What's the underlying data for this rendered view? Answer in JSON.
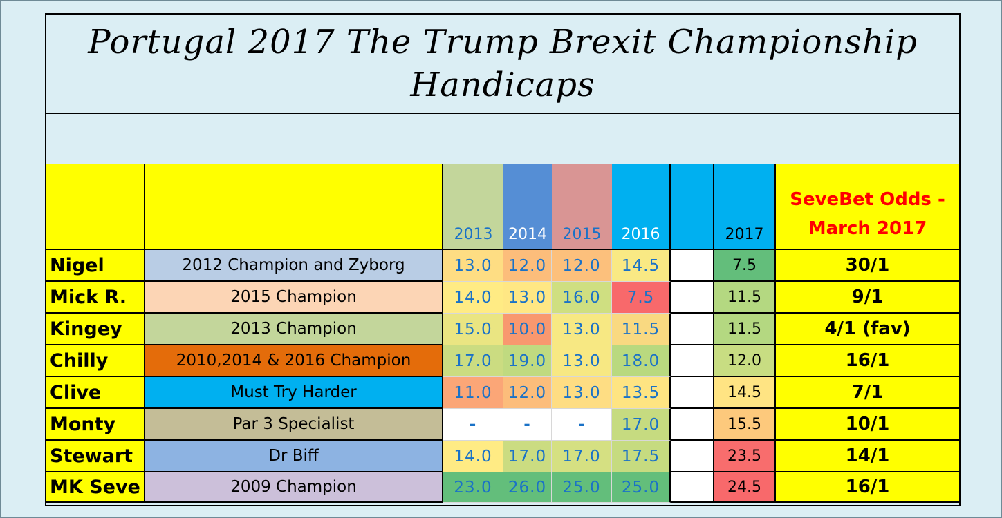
{
  "title_line1": "Portugal 2017 The Trump Brexit Championship",
  "title_line2": "Handicaps",
  "headers": {
    "years": [
      "2013",
      "2014",
      "2015",
      "2016"
    ],
    "current_year": "2017",
    "odds_line1": "SeveBet Odds -",
    "odds_line2": "March 2017"
  },
  "header_colors": {
    "label_bg": "#ffff00",
    "y2013": "#c3d69b",
    "y2014": "#558ed5",
    "y2015": "#d99594",
    "y2016": "#00b0f0",
    "blank": "#00b0f0",
    "y2017": "#00b0f0",
    "odds_text": "#ff0000"
  },
  "rows": [
    {
      "name": "Nigel",
      "note": "2012 Champion and Zyborg",
      "note_bg": "#b9cde5",
      "h": [
        "13.0",
        "12.0",
        "12.0",
        "14.5"
      ],
      "h_bg": [
        "#fedd83",
        "#fcbd7b",
        "#fcc07c",
        "#f9e984"
      ],
      "cur": "7.5",
      "cur_bg": "#63be7b",
      "odds": "30/1"
    },
    {
      "name": "Mick R.",
      "note": "2015 Champion",
      "note_bg": "#fcd5b5",
      "h": [
        "14.0",
        "13.0",
        "16.0",
        "7.5"
      ],
      "h_bg": [
        "#ffeb84",
        "#ffe784",
        "#cfdf81",
        "#f8696b"
      ],
      "cur": "11.5",
      "cur_bg": "#b4d881",
      "odds": "9/1"
    },
    {
      "name": "Kingey",
      "note": "2013 Champion",
      "note_bg": "#c3d69b",
      "h": [
        "15.0",
        "10.0",
        "13.0",
        "11.5"
      ],
      "h_bg": [
        "#eae582",
        "#f8986f",
        "#f7e883",
        "#f9d981"
      ],
      "cur": "11.5",
      "cur_bg": "#b4d881",
      "odds": "4/1 (fav)"
    },
    {
      "name": "Chilly",
      "note": "2010,2014 & 2016 Champion",
      "note_bg": "#e46c0a",
      "h": [
        "17.0",
        "19.0",
        "13.0",
        "18.0"
      ],
      "h_bg": [
        "#cbdc81",
        "#c0da80",
        "#f7e883",
        "#b9d97f"
      ],
      "cur": "12.0",
      "cur_bg": "#c8dd82",
      "odds": "16/1"
    },
    {
      "name": "Clive",
      "note": "Must Try Harder",
      "note_bg": "#00b0f0",
      "h": [
        "11.0",
        "12.0",
        "13.0",
        "13.5"
      ],
      "h_bg": [
        "#fba677",
        "#fcbd7b",
        "#fedd83",
        "#fee482"
      ],
      "cur": "14.5",
      "cur_bg": "#ffe483",
      "odds": "7/1"
    },
    {
      "name": "Monty",
      "note": "Par 3 Specialist",
      "note_bg": "#c4bd97",
      "h": [
        "-",
        "-",
        "-",
        "17.0"
      ],
      "h_bg": [
        "#ffffff",
        "#ffffff",
        "#ffffff",
        "#c6db80"
      ],
      "cur": "15.5",
      "cur_bg": "#fdc97c",
      "odds": "10/1"
    },
    {
      "name": "Stewart",
      "note": "Dr Biff",
      "note_bg": "#8db3e2",
      "h": [
        "14.0",
        "17.0",
        "17.0",
        "17.5"
      ],
      "h_bg": [
        "#ffeb84",
        "#cbdc81",
        "#d5e082",
        "#c6db80"
      ],
      "cur": "23.5",
      "cur_bg": "#f86d6d",
      "odds": "14/1"
    },
    {
      "name": "MK Seve",
      "note": "2009 Champion",
      "note_bg": "#ccc0da",
      "h": [
        "23.0",
        "26.0",
        "25.0",
        "25.0"
      ],
      "h_bg": [
        "#63be7b",
        "#63be7b",
        "#63be7b",
        "#63be7b"
      ],
      "cur": "24.5",
      "cur_bg": "#f8696b",
      "odds": "16/1"
    }
  ]
}
